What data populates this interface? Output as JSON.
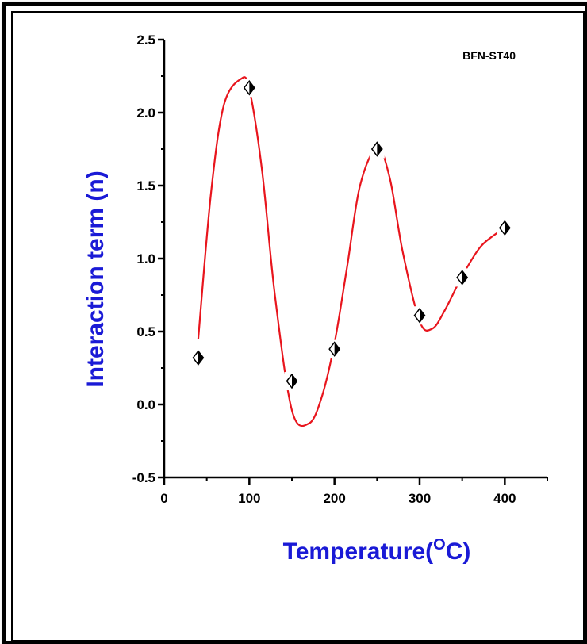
{
  "chart_data": {
    "type": "line",
    "annotation": "BFN-ST40",
    "xlabel_main": "Temperature(",
    "xlabel_sup": "O",
    "xlabel_end": "C)",
    "ylabel": "Interaction term (n)",
    "xlim": [
      0,
      450
    ],
    "ylim": [
      -0.5,
      2.5
    ],
    "xticks": [
      0,
      100,
      200,
      300,
      400
    ],
    "xtick_labels": [
      "0",
      "100",
      "200",
      "300",
      "400"
    ],
    "yticks": [
      -0.5,
      0.0,
      0.5,
      1.0,
      1.5,
      2.0,
      2.5
    ],
    "ytick_labels": [
      "-0.5",
      "0.0",
      "0.5",
      "1.0",
      "1.5",
      "2.0",
      "2.5"
    ],
    "series": [
      {
        "marker": "half-filled-diamond",
        "x": [
          40,
          100,
          150,
          200,
          250,
          300,
          350,
          400
        ],
        "y": [
          0.32,
          2.17,
          0.16,
          0.38,
          1.75,
          0.61,
          0.87,
          1.21
        ]
      }
    ],
    "fit_curve": {
      "x": [
        40,
        55,
        70,
        90,
        100,
        115,
        130,
        150,
        170,
        185,
        200,
        215,
        230,
        250,
        265,
        280,
        300,
        315,
        330,
        350,
        370,
        385,
        400
      ],
      "y": [
        0.45,
        1.45,
        2.05,
        2.23,
        2.16,
        1.6,
        0.75,
        -0.04,
        -0.13,
        0.05,
        0.42,
        0.95,
        1.5,
        1.76,
        1.55,
        1.05,
        0.57,
        0.52,
        0.65,
        0.88,
        1.07,
        1.15,
        1.21
      ]
    },
    "colors": {
      "curve": "#e8151d",
      "axis_title": "#1a1ad6",
      "axis": "#000000"
    },
    "grid": false
  }
}
